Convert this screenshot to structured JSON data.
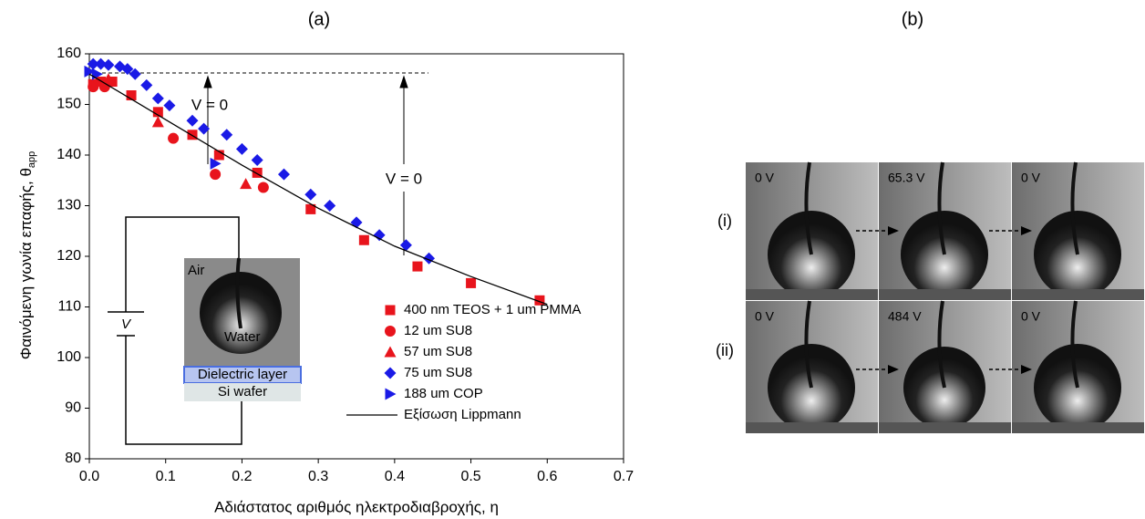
{
  "chart_data": {
    "type": "scatter",
    "panel_label": "(a)",
    "xlabel": "Αδιάστατος αριθμός ηλεκτροδιαβροχής, η",
    "ylabel": "Φαινόμενη γωνία επαφής, θ",
    "ylabel_subscript": "app",
    "xlim": [
      0,
      0.7
    ],
    "ylim": [
      80,
      160
    ],
    "xticks": [
      {
        "value": 0,
        "label": "0.0"
      },
      0.1,
      0.2,
      0.3,
      0.4,
      0.5,
      0.6,
      0.7
    ],
    "yticks": [
      80,
      90,
      100,
      110,
      120,
      130,
      140,
      150,
      160
    ],
    "series": [
      {
        "name": "400 nm TEOS + 1 um PMMA",
        "color": "#e8141c",
        "marker": "square",
        "x": [
          0.005,
          0.015,
          0.03,
          0.055,
          0.09,
          0.135,
          0.17,
          0.22,
          0.29,
          0.36,
          0.43,
          0.5,
          0.59
        ],
        "values": [
          154,
          154.5,
          154.5,
          151.8,
          148.5,
          144,
          140,
          136.5,
          129.3,
          123.2,
          118,
          114.7,
          111.3
        ]
      },
      {
        "name": "12 um SU8",
        "color": "#e8141c",
        "marker": "circle",
        "x": [
          0.005,
          0.02,
          0.11,
          0.165,
          0.228
        ],
        "values": [
          153.5,
          153.5,
          143.3,
          136.2,
          133.6
        ]
      },
      {
        "name": "57 um SU8",
        "color": "#e8141c",
        "marker": "triangle-up",
        "x": [
          0.01,
          0.025,
          0.09,
          0.205
        ],
        "values": [
          154.5,
          155,
          146.5,
          134.3
        ]
      },
      {
        "name": "75 um SU8",
        "color": "#1a1ae6",
        "marker": "diamond",
        "x": [
          0.005,
          0.015,
          0.025,
          0.04,
          0.05,
          0.06,
          0.075,
          0.09,
          0.105,
          0.135,
          0.15,
          0.18,
          0.2,
          0.22,
          0.255,
          0.29,
          0.315,
          0.35,
          0.38,
          0.415,
          0.445
        ],
        "values": [
          158,
          158,
          157.8,
          157.5,
          157,
          156,
          153.8,
          151.2,
          149.8,
          146.8,
          145.2,
          144,
          141.2,
          139,
          136.2,
          132.2,
          130,
          126.7,
          124.2,
          122.2,
          119.6
        ]
      },
      {
        "name": "188 um COP",
        "color": "#1a1ae6",
        "marker": "triangle-right",
        "x": [
          0,
          0.01,
          0.165
        ],
        "values": [
          156.5,
          156,
          138.3
        ]
      },
      {
        "name": "Εξίσωση Lippmann",
        "color": "#000000",
        "marker": "line",
        "x": [
          0,
          0.1,
          0.2,
          0.3,
          0.4,
          0.5,
          0.6
        ],
        "values": [
          156,
          147,
          138,
          129.5,
          122,
          116,
          110.5
        ]
      }
    ],
    "annotations": [
      "V = 0",
      "V = 0"
    ],
    "inset": {
      "air": "Air",
      "water": "Water",
      "dielectric": "Dielectric layer",
      "wafer": "Si wafer",
      "voltage": "V"
    }
  },
  "panel_b": {
    "label": "(b)",
    "rows": [
      {
        "label": "(i)",
        "frames": [
          "0 V",
          "65.3 V",
          "0 V"
        ]
      },
      {
        "label": "(ii)",
        "frames": [
          "0 V",
          "484 V",
          "0 V"
        ]
      }
    ]
  }
}
